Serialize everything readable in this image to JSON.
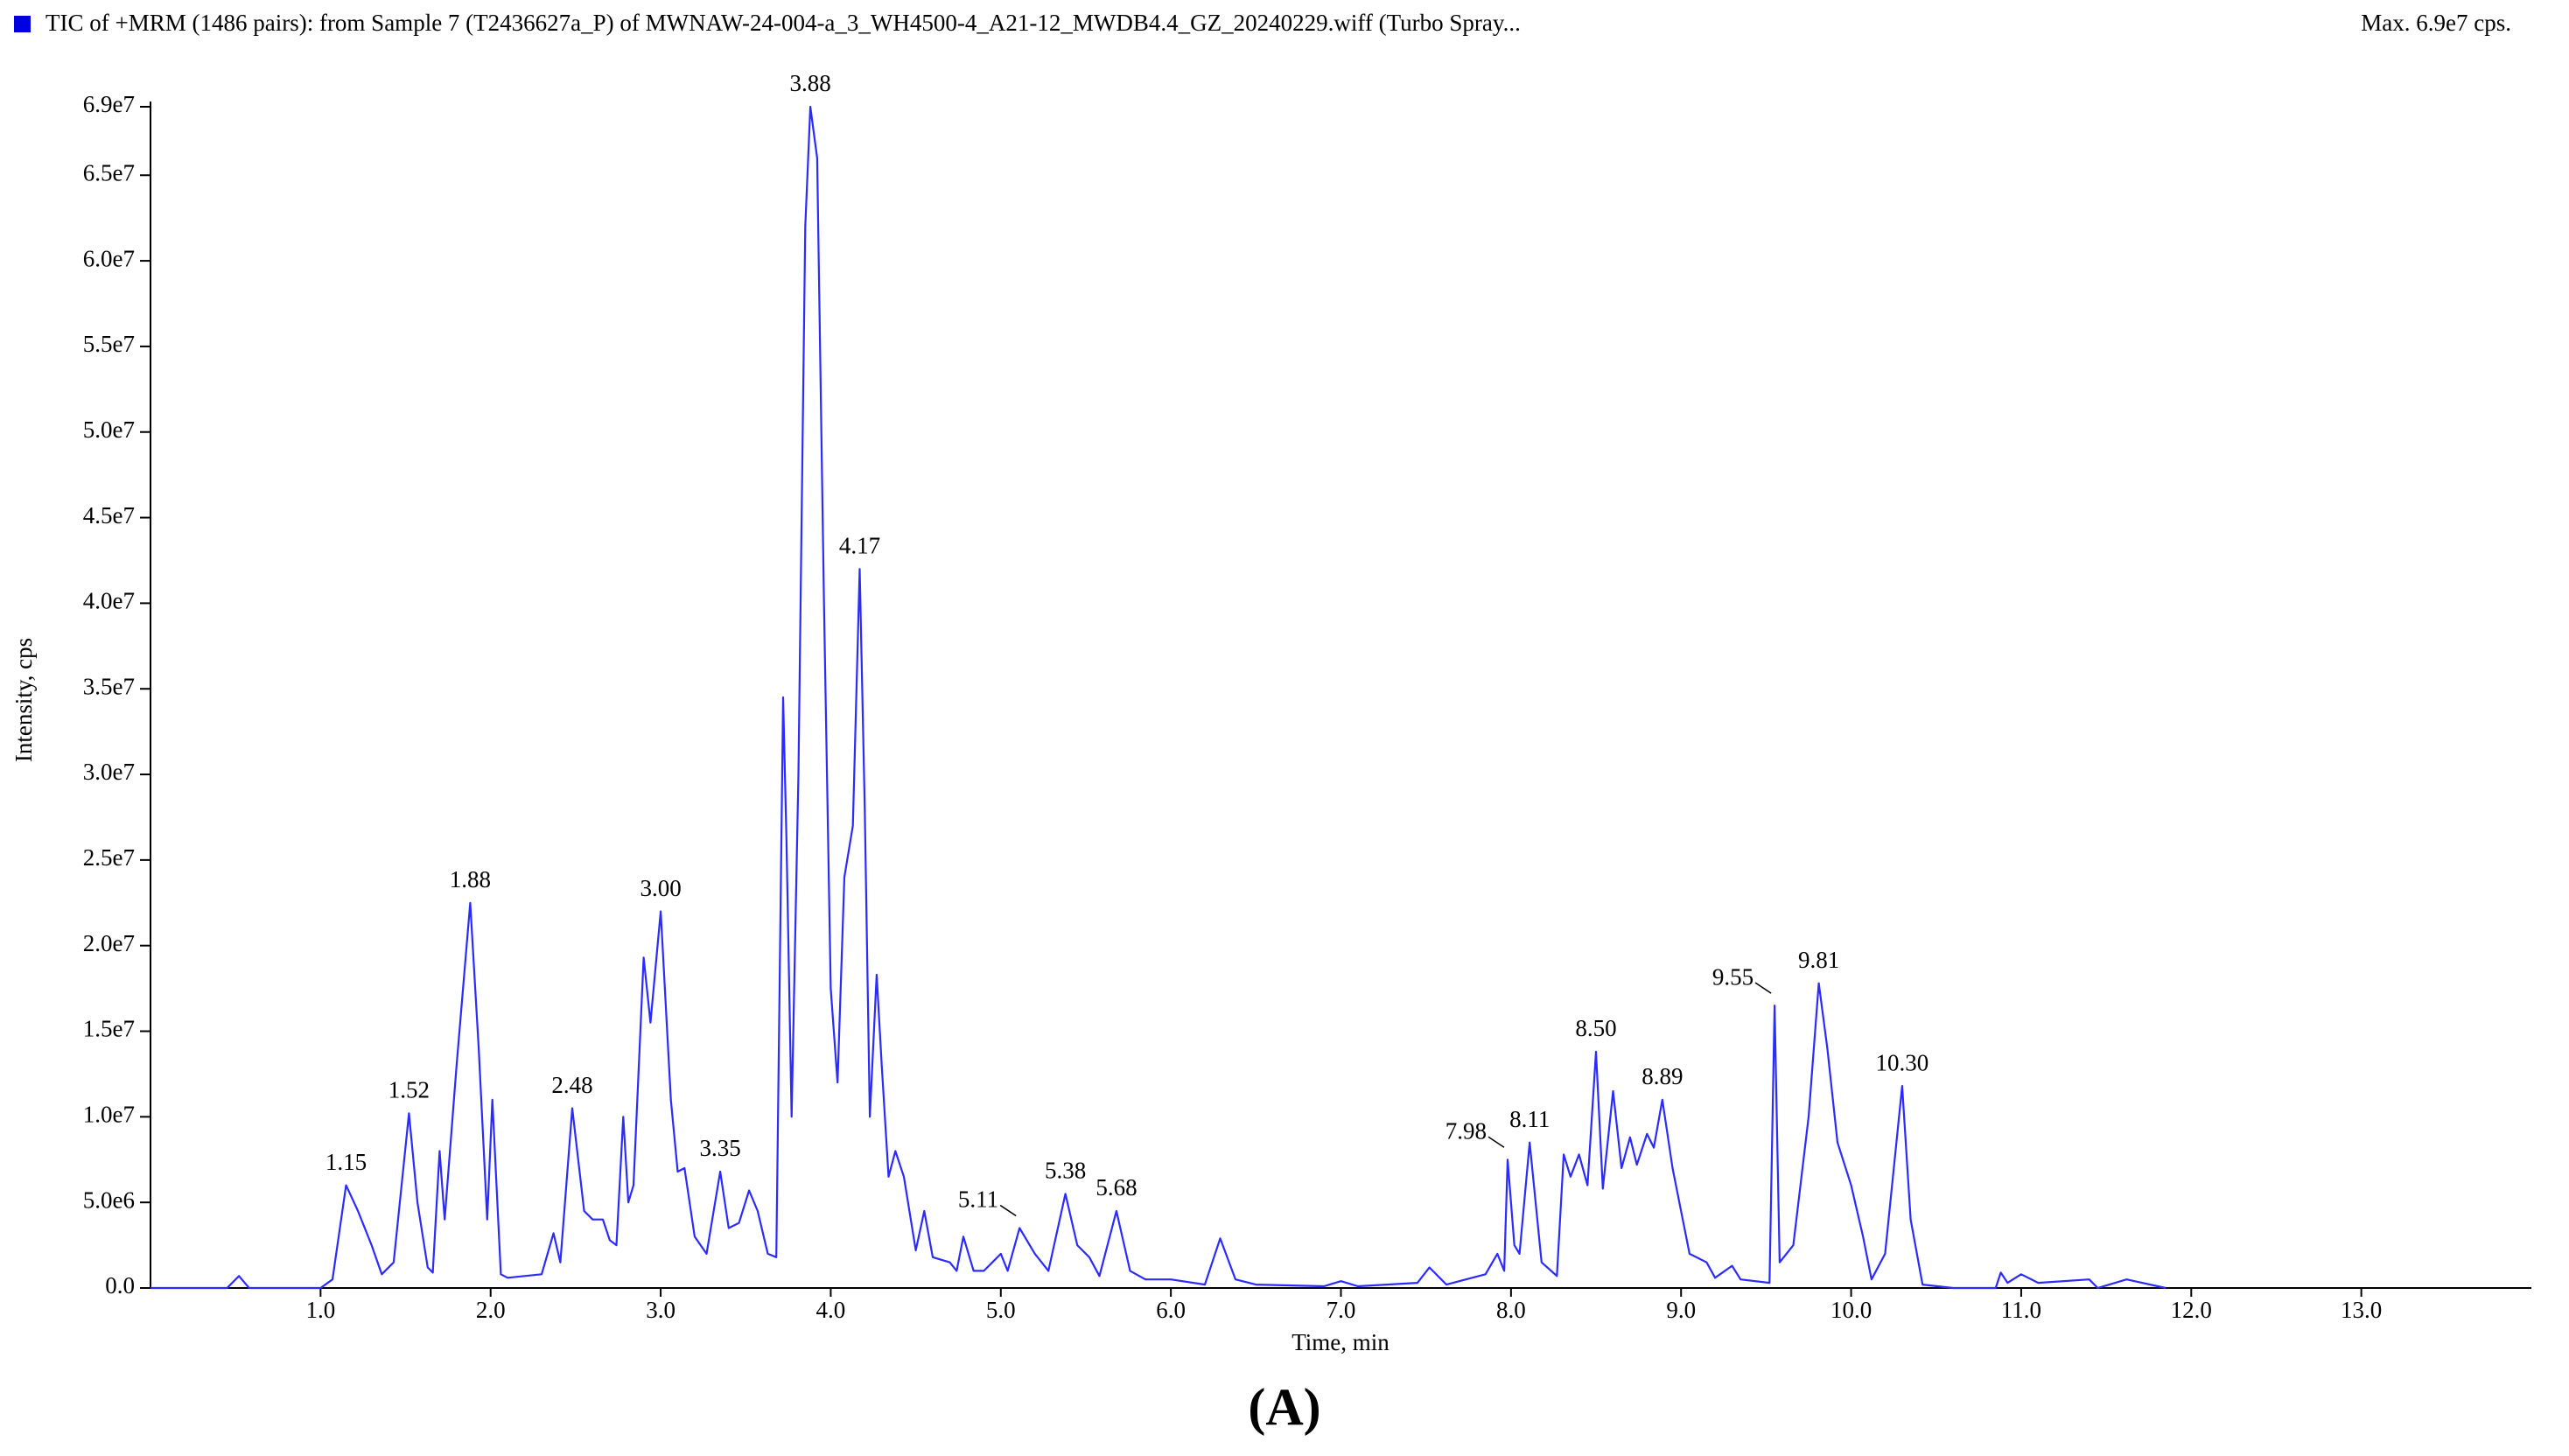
{
  "chart_data": {
    "type": "line",
    "title": "TIC of +MRM (1486 pairs): from Sample 7 (T2436627a_P) of MWNAW-24-004-a_3_WH4500-4_A21-12_MWDB4.4_GZ_20240229.wiff (Turbo Spray...",
    "max_label": "Max. 6.9e7 cps.",
    "x_label": "Time, min",
    "y_label": "Intensity, cps",
    "caption": "(A)",
    "color": "#2b2bff",
    "xlim": [
      0,
      14
    ],
    "ylim": [
      0,
      69000000
    ],
    "xticks": [
      {
        "value": 1,
        "label": "1.0"
      },
      {
        "value": 2,
        "label": "2.0"
      },
      {
        "value": 3,
        "label": "3.0"
      },
      {
        "value": 4,
        "label": "4.0"
      },
      {
        "value": 5,
        "label": "5.0"
      },
      {
        "value": 6,
        "label": "6.0"
      },
      {
        "value": 7,
        "label": "7.0"
      },
      {
        "value": 8,
        "label": "8.0"
      },
      {
        "value": 9,
        "label": "9.0"
      },
      {
        "value": 10,
        "label": "10.0"
      },
      {
        "value": 11,
        "label": "11.0"
      },
      {
        "value": 12,
        "label": "12.0"
      },
      {
        "value": 13,
        "label": "13.0"
      }
    ],
    "yticks": [
      {
        "value": 0,
        "label": "0.0"
      },
      {
        "value": 5000000,
        "label": "5.0e6"
      },
      {
        "value": 10000000,
        "label": "1.0e7"
      },
      {
        "value": 15000000,
        "label": "1.5e7"
      },
      {
        "value": 20000000,
        "label": "2.0e7"
      },
      {
        "value": 25000000,
        "label": "2.5e7"
      },
      {
        "value": 30000000,
        "label": "3.0e7"
      },
      {
        "value": 35000000,
        "label": "3.5e7"
      },
      {
        "value": 40000000,
        "label": "4.0e7"
      },
      {
        "value": 45000000,
        "label": "4.5e7"
      },
      {
        "value": 50000000,
        "label": "5.0e7"
      },
      {
        "value": 55000000,
        "label": "5.5e7"
      },
      {
        "value": 60000000,
        "label": "6.0e7"
      },
      {
        "value": 65000000,
        "label": "6.5e7"
      },
      {
        "value": 69000000,
        "label": "6.9e7"
      }
    ],
    "x": [
      0.0,
      0.45,
      0.52,
      0.58,
      1.0,
      1.07,
      1.15,
      1.22,
      1.3,
      1.36,
      1.43,
      1.52,
      1.57,
      1.63,
      1.66,
      1.7,
      1.73,
      1.8,
      1.88,
      1.93,
      1.98,
      2.01,
      2.06,
      2.1,
      2.3,
      2.37,
      2.41,
      2.48,
      2.55,
      2.6,
      2.66,
      2.7,
      2.74,
      2.78,
      2.81,
      2.84,
      2.9,
      2.94,
      3.0,
      3.06,
      3.1,
      3.14,
      3.2,
      3.27,
      3.35,
      3.4,
      3.46,
      3.52,
      3.57,
      3.63,
      3.68,
      3.72,
      3.74,
      3.77,
      3.81,
      3.85,
      3.88,
      3.92,
      3.96,
      4.0,
      4.04,
      4.08,
      4.13,
      4.17,
      4.2,
      4.23,
      4.27,
      4.3,
      4.34,
      4.38,
      4.43,
      4.5,
      4.55,
      4.6,
      4.7,
      4.74,
      4.78,
      4.84,
      4.9,
      4.95,
      5.0,
      5.04,
      5.11,
      5.2,
      5.28,
      5.38,
      5.45,
      5.52,
      5.58,
      5.68,
      5.76,
      5.85,
      6.0,
      6.2,
      6.29,
      6.38,
      6.5,
      6.9,
      7.0,
      7.1,
      7.45,
      7.52,
      7.62,
      7.85,
      7.92,
      7.96,
      7.98,
      8.02,
      8.05,
      8.11,
      8.18,
      8.27,
      8.31,
      8.35,
      8.4,
      8.45,
      8.5,
      8.54,
      8.6,
      8.65,
      8.7,
      8.74,
      8.8,
      8.84,
      8.89,
      8.95,
      9.05,
      9.15,
      9.2,
      9.3,
      9.35,
      9.52,
      9.55,
      9.58,
      9.66,
      9.75,
      9.81,
      9.86,
      9.92,
      10.0,
      10.07,
      10.12,
      10.2,
      10.3,
      10.35,
      10.42,
      10.6,
      10.85,
      10.88,
      10.92,
      11.0,
      11.1,
      11.4,
      11.45,
      11.62,
      11.85
    ],
    "values": [
      0,
      0,
      700000,
      0,
      0,
      500000,
      6000000,
      4500000,
      2500000,
      800000,
      1500000,
      10200000,
      5000000,
      1200000,
      900000,
      8000000,
      4000000,
      13000000,
      22500000,
      14000000,
      4000000,
      11000000,
      800000,
      600000,
      800000,
      3200000,
      1500000,
      10500000,
      4500000,
      4000000,
      4000000,
      2800000,
      2500000,
      10000000,
      5000000,
      6000000,
      19300000,
      15500000,
      22000000,
      11000000,
      6800000,
      7000000,
      3000000,
      2000000,
      6800000,
      3500000,
      3800000,
      5700000,
      4500000,
      2000000,
      1800000,
      34500000,
      26000000,
      10000000,
      30000000,
      62000000,
      69000000,
      66000000,
      40000000,
      17500000,
      12000000,
      24000000,
      27000000,
      42000000,
      28000000,
      10000000,
      18300000,
      13000000,
      6500000,
      8000000,
      6500000,
      2200000,
      4500000,
      1800000,
      1500000,
      1000000,
      3000000,
      1000000,
      1000000,
      1500000,
      2000000,
      1000000,
      3500000,
      2000000,
      1000000,
      5500000,
      2500000,
      1800000,
      700000,
      4500000,
      1000000,
      500000,
      500000,
      200000,
      2900000,
      500000,
      200000,
      100000,
      400000,
      100000,
      300000,
      1200000,
      200000,
      800000,
      2000000,
      1000000,
      7500000,
      2500000,
      2000000,
      8500000,
      1500000,
      700000,
      7800000,
      6500000,
      7800000,
      6000000,
      13800000,
      5800000,
      11500000,
      7000000,
      8800000,
      7200000,
      9000000,
      8200000,
      11000000,
      7000000,
      2000000,
      1500000,
      600000,
      1300000,
      500000,
      300000,
      16500000,
      1500000,
      2500000,
      10000000,
      17800000,
      14000000,
      8500000,
      6000000,
      3000000,
      500000,
      2000000,
      11800000,
      4000000,
      200000,
      0,
      0,
      900000,
      300000,
      800000,
      300000,
      500000,
      0,
      500000,
      0
    ],
    "peak_labels": [
      {
        "x": 1.15,
        "y": 6000000,
        "label": "1.15"
      },
      {
        "x": 1.52,
        "y": 10200000,
        "label": "1.52"
      },
      {
        "x": 1.88,
        "y": 22500000,
        "label": "1.88"
      },
      {
        "x": 2.48,
        "y": 10500000,
        "label": "2.48"
      },
      {
        "x": 3.0,
        "y": 22000000,
        "label": "3.00"
      },
      {
        "x": 3.35,
        "y": 6800000,
        "label": "3.35"
      },
      {
        "x": 3.88,
        "y": 69000000,
        "label": "3.88"
      },
      {
        "x": 4.17,
        "y": 42000000,
        "label": "4.17"
      },
      {
        "x": 5.11,
        "y": 3500000,
        "label": "5.11"
      },
      {
        "x": 5.38,
        "y": 5500000,
        "label": "5.38"
      },
      {
        "x": 5.68,
        "y": 4500000,
        "label": "5.68"
      },
      {
        "x": 7.98,
        "y": 7500000,
        "label": "7.98"
      },
      {
        "x": 8.11,
        "y": 8500000,
        "label": "8.11"
      },
      {
        "x": 8.5,
        "y": 13800000,
        "label": "8.50"
      },
      {
        "x": 8.89,
        "y": 11000000,
        "label": "8.89"
      },
      {
        "x": 9.55,
        "y": 16500000,
        "label": "9.55"
      },
      {
        "x": 9.81,
        "y": 17800000,
        "label": "9.81"
      },
      {
        "x": 10.3,
        "y": 11800000,
        "label": "10.30"
      }
    ]
  }
}
